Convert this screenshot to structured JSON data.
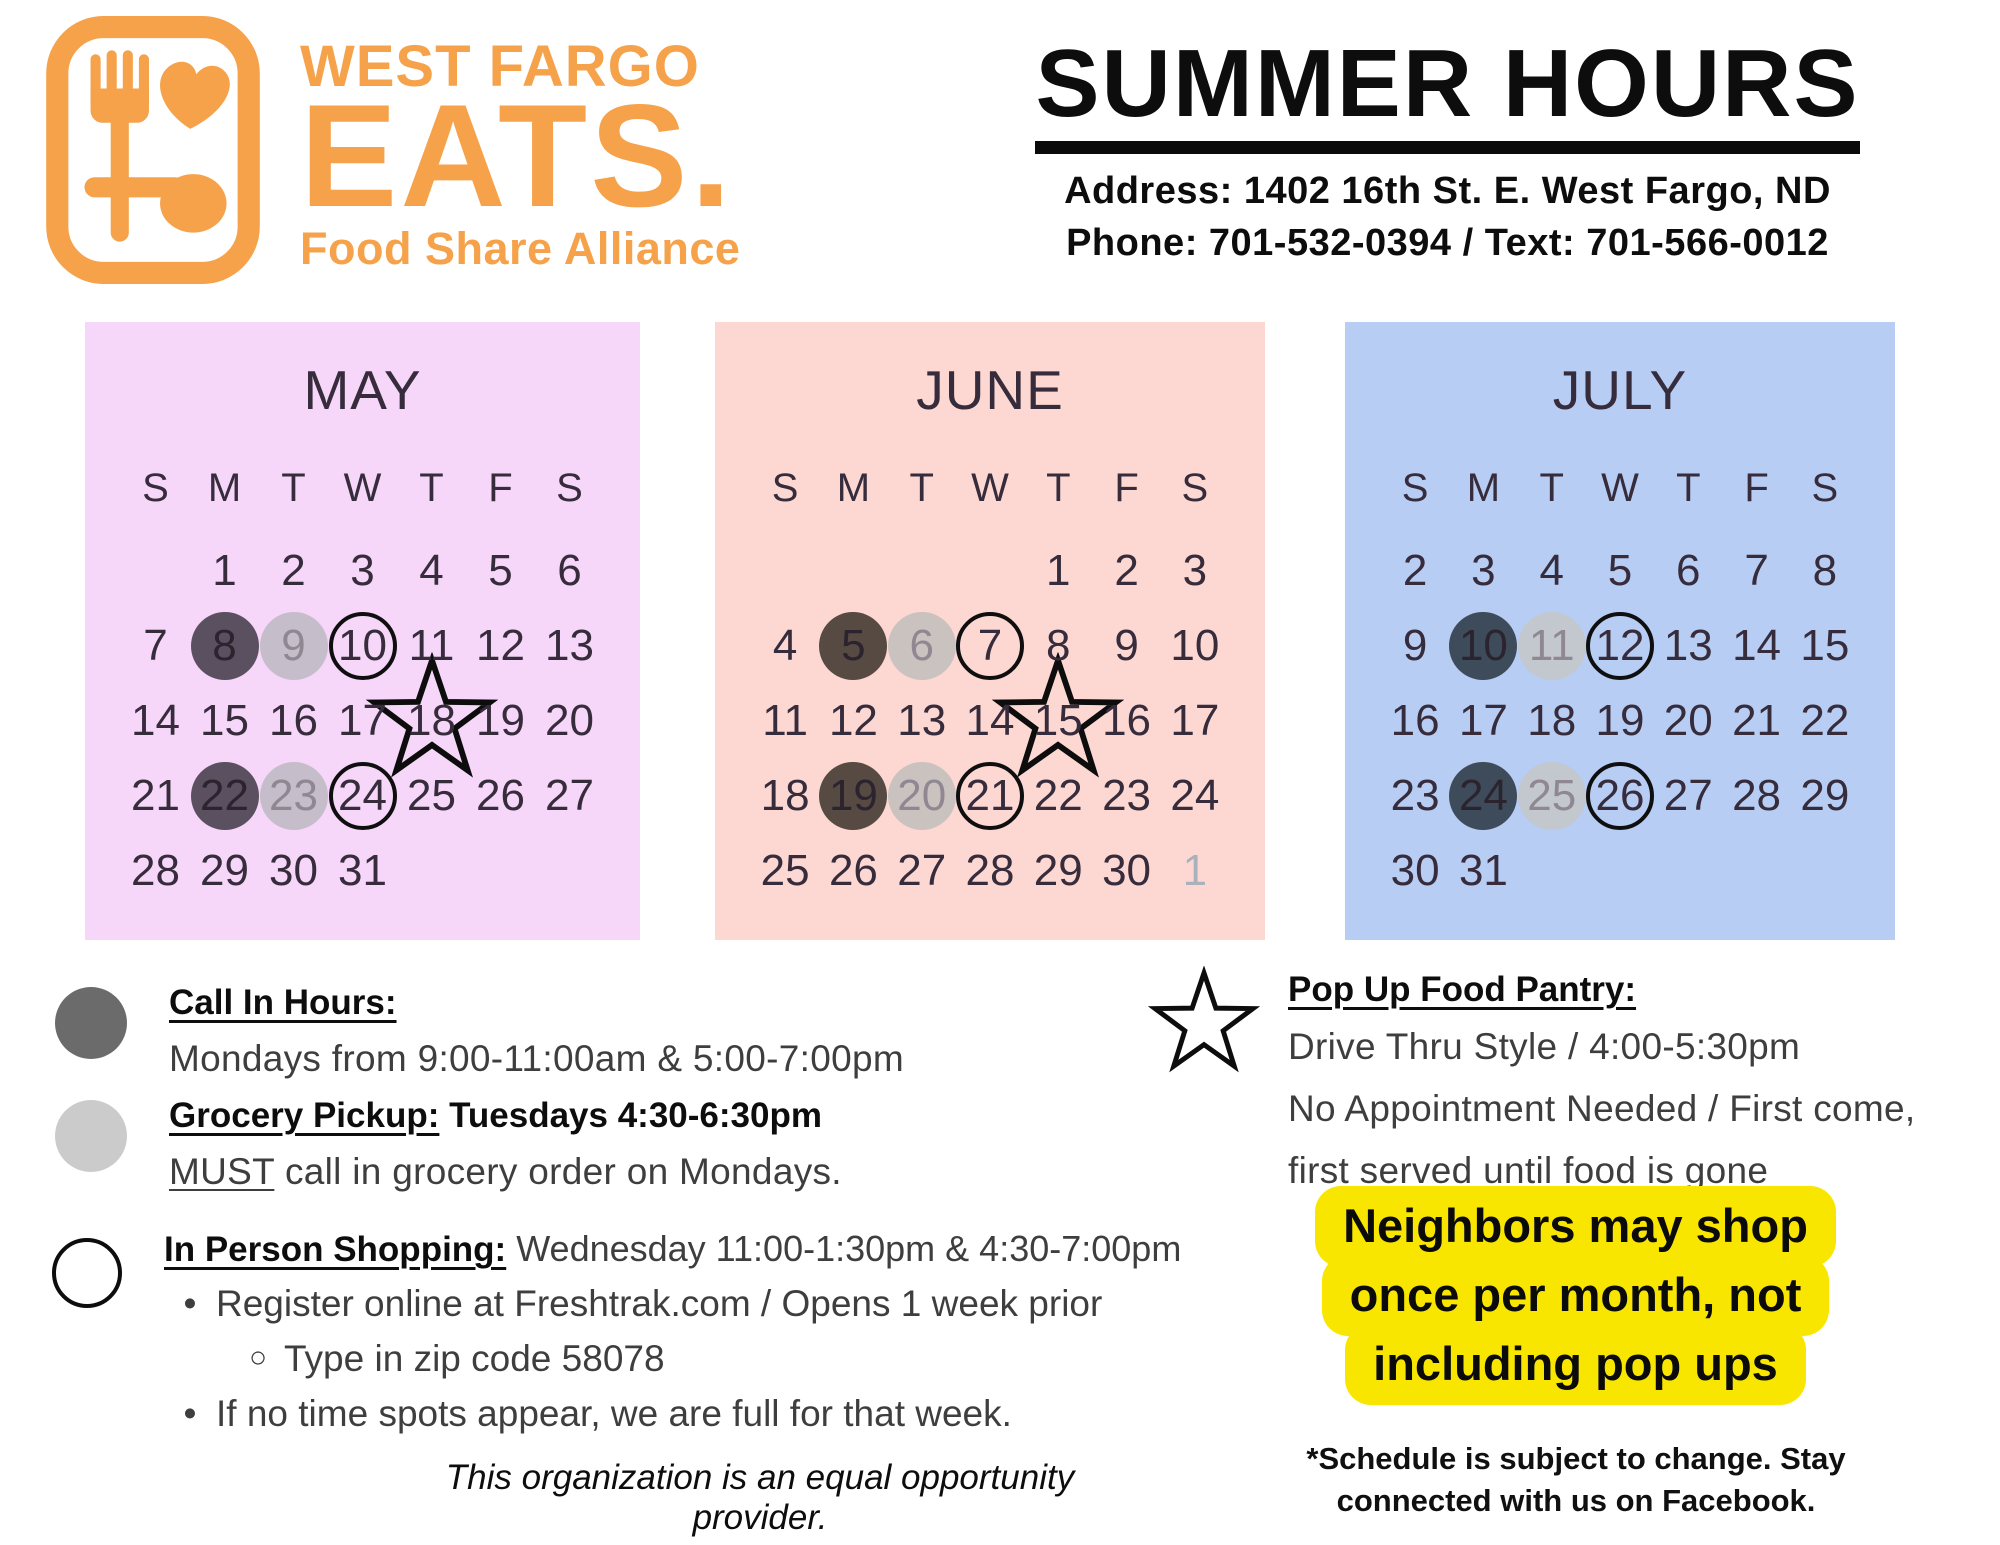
{
  "logo": {
    "color": "#f5a24b",
    "line1": "WEST FARGO",
    "line2": "EATS.",
    "tagline": "Food Share Alliance"
  },
  "header": {
    "title": "SUMMER HOURS",
    "address": "Address: 1402 16th St. E. West Fargo, ND",
    "phone": "Phone: 701-532-0394 / Text: 701-566-0012"
  },
  "calendars": [
    {
      "title": "MAY",
      "panel_bg": "#f6d6f9",
      "dark_color": "#5a5060",
      "light_color": "#c5bdc9",
      "day_headers": [
        "S",
        "M",
        "T",
        "W",
        "T",
        "F",
        "S"
      ],
      "weeks": [
        [
          {
            "d": ""
          },
          {
            "d": "1"
          },
          {
            "d": "2"
          },
          {
            "d": "3"
          },
          {
            "d": "4"
          },
          {
            "d": "5"
          },
          {
            "d": "6"
          }
        ],
        [
          {
            "d": "7"
          },
          {
            "d": "8",
            "m": "dark"
          },
          {
            "d": "9",
            "m": "light"
          },
          {
            "d": "10",
            "m": "ring"
          },
          {
            "d": "11"
          },
          {
            "d": "12"
          },
          {
            "d": "13"
          }
        ],
        [
          {
            "d": "14"
          },
          {
            "d": "15"
          },
          {
            "d": "16"
          },
          {
            "d": "17"
          },
          {
            "d": "18",
            "m": "star"
          },
          {
            "d": "19"
          },
          {
            "d": "20"
          }
        ],
        [
          {
            "d": "21"
          },
          {
            "d": "22",
            "m": "dark"
          },
          {
            "d": "23",
            "m": "light"
          },
          {
            "d": "24",
            "m": "ring"
          },
          {
            "d": "25"
          },
          {
            "d": "26"
          },
          {
            "d": "27"
          }
        ],
        [
          {
            "d": "28"
          },
          {
            "d": "29"
          },
          {
            "d": "30"
          },
          {
            "d": "31"
          },
          {
            "d": ""
          },
          {
            "d": ""
          },
          {
            "d": ""
          }
        ]
      ]
    },
    {
      "title": "JUNE",
      "panel_bg": "#fdd8d2",
      "dark_color": "#564a43",
      "light_color": "#cac2be",
      "day_headers": [
        "S",
        "M",
        "T",
        "W",
        "T",
        "F",
        "S"
      ],
      "weeks": [
        [
          {
            "d": ""
          },
          {
            "d": ""
          },
          {
            "d": ""
          },
          {
            "d": ""
          },
          {
            "d": "1"
          },
          {
            "d": "2"
          },
          {
            "d": "3"
          }
        ],
        [
          {
            "d": "4"
          },
          {
            "d": "5",
            "m": "dark"
          },
          {
            "d": "6",
            "m": "light"
          },
          {
            "d": "7",
            "m": "ring"
          },
          {
            "d": "8"
          },
          {
            "d": "9"
          },
          {
            "d": "10"
          }
        ],
        [
          {
            "d": "11"
          },
          {
            "d": "12"
          },
          {
            "d": "13"
          },
          {
            "d": "14"
          },
          {
            "d": "15",
            "m": "star"
          },
          {
            "d": "16"
          },
          {
            "d": "17"
          }
        ],
        [
          {
            "d": "18"
          },
          {
            "d": "19",
            "m": "dark"
          },
          {
            "d": "20",
            "m": "light"
          },
          {
            "d": "21",
            "m": "ring"
          },
          {
            "d": "22"
          },
          {
            "d": "23"
          },
          {
            "d": "24"
          }
        ],
        [
          {
            "d": "25"
          },
          {
            "d": "26"
          },
          {
            "d": "27"
          },
          {
            "d": "28"
          },
          {
            "d": "29"
          },
          {
            "d": "30"
          },
          {
            "d": "1",
            "m": "muted"
          }
        ]
      ]
    },
    {
      "title": "JULY",
      "panel_bg": "#b7cdf4",
      "dark_color": "#3e4b5b",
      "light_color": "#c3c8ce",
      "day_headers": [
        "S",
        "M",
        "T",
        "W",
        "T",
        "F",
        "S"
      ],
      "weeks": [
        [
          {
            "d": "2"
          },
          {
            "d": "3"
          },
          {
            "d": "4"
          },
          {
            "d": "5"
          },
          {
            "d": "6"
          },
          {
            "d": "7"
          },
          {
            "d": "8"
          }
        ],
        [
          {
            "d": "9"
          },
          {
            "d": "10",
            "m": "dark"
          },
          {
            "d": "11",
            "m": "light"
          },
          {
            "d": "12",
            "m": "ring"
          },
          {
            "d": "13"
          },
          {
            "d": "14"
          },
          {
            "d": "15"
          }
        ],
        [
          {
            "d": "16"
          },
          {
            "d": "17"
          },
          {
            "d": "18"
          },
          {
            "d": "19"
          },
          {
            "d": "20"
          },
          {
            "d": "21"
          },
          {
            "d": "22"
          }
        ],
        [
          {
            "d": "23"
          },
          {
            "d": "24",
            "m": "dark"
          },
          {
            "d": "25",
            "m": "light"
          },
          {
            "d": "26",
            "m": "ring"
          },
          {
            "d": "27"
          },
          {
            "d": "28"
          },
          {
            "d": "29"
          }
        ],
        [
          {
            "d": "30"
          },
          {
            "d": "31"
          },
          {
            "d": ""
          },
          {
            "d": ""
          },
          {
            "d": ""
          },
          {
            "d": ""
          },
          {
            "d": ""
          }
        ]
      ]
    }
  ],
  "legend": {
    "call_in": {
      "marker_color": "#6b6b6b",
      "heading": "Call In Hours:",
      "body": "Mondays from 9:00-11:00am & 5:00-7:00pm"
    },
    "grocery": {
      "marker_color": "#cbcbcb",
      "heading": "Grocery Pickup:",
      "heading_rest": " Tuesdays 4:30-6:30pm",
      "body_emph": "MUST",
      "body_rest": " call in grocery order on Mondays."
    },
    "in_person": {
      "heading": "In Person Shopping:",
      "heading_rest": " Wednesday 11:00-1:30pm & 4:30-7:00pm",
      "bullet1": "Register online at Freshtrak.com / Opens 1 week prior",
      "sub_bullet": "Type in zip code 58078",
      "bullet2": "If no time spots appear, we are full for that week."
    }
  },
  "popup": {
    "heading": "Pop Up Food Pantry:",
    "line1": "Drive Thru Style / 4:00-5:30pm",
    "line2": "No Appointment Needed / First come,",
    "line3": "first served until food is gone"
  },
  "notice": {
    "bg": "#f8e600",
    "line1": "Neighbors may shop",
    "line2": "once per month, not",
    "line3": "including pop ups"
  },
  "footnote": {
    "line1": "*Schedule is subject to change. Stay",
    "line2": "connected with us on Facebook."
  },
  "footer": {
    "text": "This organization is an equal opportunity provider."
  }
}
